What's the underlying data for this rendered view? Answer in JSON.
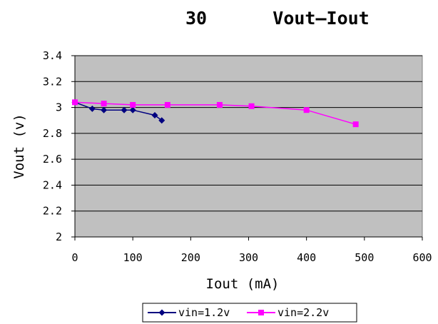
{
  "chart_data": {
    "type": "line",
    "title_number": "30",
    "title": "Vout—Iout",
    "xlabel": "Iout (mA)",
    "ylabel": "Vout (v)",
    "xlim": [
      0,
      600
    ],
    "ylim": [
      2,
      3.4
    ],
    "xticks": [
      0,
      100,
      200,
      300,
      400,
      500,
      600
    ],
    "yticks": [
      2,
      2.2,
      2.4,
      2.6,
      2.8,
      3,
      3.2,
      3.4
    ],
    "grid": "horizontal",
    "legend_position": "bottom",
    "plot_background": "#c0c0c0",
    "series": [
      {
        "name": "vin=1.2v",
        "color": "#000080",
        "marker": "diamond",
        "x": [
          0,
          30,
          50,
          85,
          100,
          138,
          150
        ],
        "y": [
          3.04,
          2.99,
          2.98,
          2.98,
          2.98,
          2.94,
          2.9
        ]
      },
      {
        "name": "vin=2.2v",
        "color": "#ff00ff",
        "marker": "square",
        "x": [
          0,
          50,
          100,
          160,
          250,
          305,
          400,
          485
        ],
        "y": [
          3.04,
          3.03,
          3.02,
          3.02,
          3.02,
          3.01,
          2.98,
          2.87
        ]
      }
    ]
  }
}
